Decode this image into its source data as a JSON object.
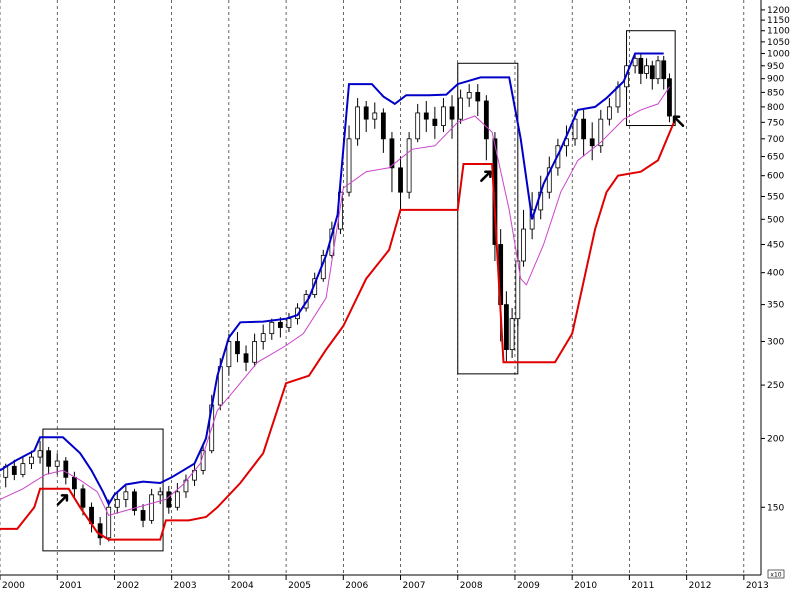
{
  "chart_data": {
    "type": "candlestick",
    "title": "",
    "xlabel": "",
    "ylabel": "",
    "y_scale": "log",
    "ylim": [
      113,
      1230
    ],
    "xlim": [
      2000.0,
      2013.3
    ],
    "y_ticks": [
      1200,
      1150,
      1100,
      1050,
      1000,
      950,
      900,
      850,
      800,
      750,
      700,
      650,
      600,
      550,
      500,
      450,
      400,
      350,
      300,
      250,
      200,
      150
    ],
    "x_ticks": [
      "2000",
      "2001",
      "2002",
      "2003",
      "2004",
      "2005",
      "2006",
      "2007",
      "2008",
      "2009",
      "2010",
      "2011",
      "2012",
      "2013"
    ],
    "scale_tag": "x10",
    "grid": {
      "vertical": true,
      "horizontal": false,
      "style": "dashed"
    },
    "colors": {
      "upper_band": "#0000c8",
      "lower_band": "#e00000",
      "middle_line": "#cc44cc",
      "candles": "#000000",
      "boxes": "#000000",
      "arrows": "#000000"
    },
    "upper_band": [
      [
        2000.0,
        175
      ],
      [
        2000.3,
        183
      ],
      [
        2000.6,
        190
      ],
      [
        2000.7,
        201
      ],
      [
        2001.1,
        201
      ],
      [
        2001.4,
        188
      ],
      [
        2001.6,
        175
      ],
      [
        2001.8,
        160
      ],
      [
        2001.9,
        152
      ],
      [
        2002.0,
        158
      ],
      [
        2002.2,
        165
      ],
      [
        2002.5,
        167
      ],
      [
        2002.8,
        166
      ],
      [
        2003.0,
        170
      ],
      [
        2003.4,
        180
      ],
      [
        2003.6,
        200
      ],
      [
        2003.8,
        260
      ],
      [
        2004.0,
        305
      ],
      [
        2004.2,
        325
      ],
      [
        2004.6,
        326
      ],
      [
        2005.0,
        330
      ],
      [
        2005.2,
        335
      ],
      [
        2005.4,
        360
      ],
      [
        2005.7,
        430
      ],
      [
        2005.9,
        510
      ],
      [
        2006.1,
        880
      ],
      [
        2006.5,
        880
      ],
      [
        2006.7,
        835
      ],
      [
        2006.9,
        810
      ],
      [
        2007.1,
        840
      ],
      [
        2007.5,
        840
      ],
      [
        2007.8,
        842
      ],
      [
        2008.0,
        880
      ],
      [
        2008.4,
        905
      ],
      [
        2008.9,
        905
      ],
      [
        2009.1,
        700
      ],
      [
        2009.3,
        500
      ],
      [
        2009.5,
        580
      ],
      [
        2009.8,
        670
      ],
      [
        2010.1,
        790
      ],
      [
        2010.4,
        800
      ],
      [
        2010.6,
        830
      ],
      [
        2010.9,
        890
      ],
      [
        2011.1,
        1000
      ],
      [
        2011.6,
        1000
      ]
    ],
    "middle_line": [
      [
        2000.0,
        155
      ],
      [
        2000.4,
        162
      ],
      [
        2000.8,
        172
      ],
      [
        2001.1,
        175
      ],
      [
        2001.4,
        168
      ],
      [
        2001.7,
        160
      ],
      [
        2001.9,
        145
      ],
      [
        2002.2,
        148
      ],
      [
        2002.6,
        152
      ],
      [
        2002.9,
        155
      ],
      [
        2003.2,
        165
      ],
      [
        2003.5,
        180
      ],
      [
        2003.8,
        225
      ],
      [
        2004.1,
        245
      ],
      [
        2004.5,
        275
      ],
      [
        2005.0,
        295
      ],
      [
        2005.3,
        310
      ],
      [
        2005.7,
        360
      ],
      [
        2006.0,
        570
      ],
      [
        2006.4,
        610
      ],
      [
        2006.8,
        620
      ],
      [
        2007.2,
        670
      ],
      [
        2007.6,
        680
      ],
      [
        2008.0,
        750
      ],
      [
        2008.3,
        770
      ],
      [
        2008.6,
        720
      ],
      [
        2008.9,
        520
      ],
      [
        2009.1,
        390
      ],
      [
        2009.2,
        380
      ],
      [
        2009.5,
        450
      ],
      [
        2009.8,
        560
      ],
      [
        2010.1,
        640
      ],
      [
        2010.5,
        690
      ],
      [
        2010.9,
        760
      ],
      [
        2011.2,
        790
      ],
      [
        2011.5,
        810
      ],
      [
        2011.7,
        870
      ]
    ],
    "lower_band": [
      [
        2000.0,
        137
      ],
      [
        2000.3,
        137
      ],
      [
        2000.6,
        150
      ],
      [
        2000.7,
        162
      ],
      [
        2001.2,
        162
      ],
      [
        2001.4,
        150
      ],
      [
        2001.7,
        135
      ],
      [
        2001.9,
        131
      ],
      [
        2002.3,
        131
      ],
      [
        2002.8,
        131
      ],
      [
        2002.9,
        142
      ],
      [
        2003.3,
        142
      ],
      [
        2003.6,
        144
      ],
      [
        2003.8,
        150
      ],
      [
        2004.2,
        166
      ],
      [
        2004.6,
        188
      ],
      [
        2005.0,
        252
      ],
      [
        2005.4,
        260
      ],
      [
        2005.7,
        290
      ],
      [
        2006.0,
        320
      ],
      [
        2006.4,
        390
      ],
      [
        2006.8,
        440
      ],
      [
        2007.0,
        520
      ],
      [
        2007.4,
        520
      ],
      [
        2008.0,
        520
      ],
      [
        2008.1,
        630
      ],
      [
        2008.6,
        630
      ],
      [
        2008.8,
        275
      ],
      [
        2009.4,
        275
      ],
      [
        2009.7,
        275
      ],
      [
        2010.0,
        310
      ],
      [
        2010.4,
        480
      ],
      [
        2010.6,
        560
      ],
      [
        2010.8,
        600
      ],
      [
        2011.2,
        610
      ],
      [
        2011.5,
        640
      ],
      [
        2011.8,
        760
      ]
    ],
    "candles": [
      [
        2000.1,
        170,
        178,
        163,
        180
      ],
      [
        2000.25,
        178,
        172,
        168,
        183
      ],
      [
        2000.4,
        172,
        180,
        170,
        186
      ],
      [
        2000.55,
        180,
        185,
        176,
        190
      ],
      [
        2000.7,
        185,
        190,
        180,
        198
      ],
      [
        2000.85,
        190,
        178,
        172,
        193
      ],
      [
        2001.0,
        178,
        182,
        172,
        188
      ],
      [
        2001.15,
        182,
        170,
        165,
        185
      ],
      [
        2001.3,
        170,
        162,
        156,
        174
      ],
      [
        2001.45,
        162,
        150,
        145,
        165
      ],
      [
        2001.6,
        150,
        140,
        135,
        153
      ],
      [
        2001.75,
        140,
        132,
        128,
        144
      ],
      [
        2001.9,
        132,
        150,
        130,
        155
      ],
      [
        2002.05,
        150,
        155,
        146,
        160
      ],
      [
        2002.2,
        155,
        160,
        150,
        164
      ],
      [
        2002.35,
        160,
        148,
        145,
        162
      ],
      [
        2002.5,
        148,
        142,
        138,
        152
      ],
      [
        2002.65,
        142,
        158,
        140,
        162
      ],
      [
        2002.8,
        158,
        160,
        152,
        163
      ],
      [
        2002.95,
        160,
        150,
        146,
        164
      ],
      [
        2003.1,
        150,
        160,
        148,
        166
      ],
      [
        2003.25,
        160,
        168,
        156,
        172
      ],
      [
        2003.4,
        168,
        175,
        164,
        180
      ],
      [
        2003.55,
        175,
        190,
        172,
        196
      ],
      [
        2003.7,
        190,
        230,
        188,
        240
      ],
      [
        2003.85,
        230,
        270,
        225,
        280
      ],
      [
        2004.0,
        270,
        300,
        260,
        310
      ],
      [
        2004.15,
        300,
        285,
        275,
        312
      ],
      [
        2004.3,
        285,
        275,
        265,
        295
      ],
      [
        2004.45,
        275,
        300,
        270,
        310
      ],
      [
        2004.6,
        300,
        310,
        290,
        322
      ],
      [
        2004.75,
        310,
        325,
        302,
        330
      ],
      [
        2004.9,
        325,
        318,
        305,
        332
      ],
      [
        2005.05,
        318,
        330,
        312,
        338
      ],
      [
        2005.2,
        330,
        345,
        322,
        352
      ],
      [
        2005.35,
        345,
        365,
        340,
        372
      ],
      [
        2005.5,
        365,
        390,
        360,
        400
      ],
      [
        2005.65,
        390,
        430,
        385,
        440
      ],
      [
        2005.8,
        430,
        480,
        425,
        495
      ],
      [
        2005.95,
        480,
        560,
        470,
        580
      ],
      [
        2006.1,
        560,
        700,
        550,
        740
      ],
      [
        2006.25,
        700,
        800,
        680,
        830
      ],
      [
        2006.4,
        800,
        760,
        720,
        820
      ],
      [
        2006.55,
        760,
        780,
        730,
        815
      ],
      [
        2006.7,
        780,
        700,
        660,
        795
      ],
      [
        2006.85,
        700,
        620,
        560,
        720
      ],
      [
        2007.0,
        620,
        560,
        520,
        650
      ],
      [
        2007.15,
        560,
        700,
        545,
        720
      ],
      [
        2007.3,
        700,
        780,
        690,
        810
      ],
      [
        2007.45,
        780,
        760,
        720,
        820
      ],
      [
        2007.6,
        760,
        740,
        700,
        800
      ],
      [
        2007.75,
        740,
        800,
        720,
        830
      ],
      [
        2007.9,
        800,
        760,
        700,
        840
      ],
      [
        2008.05,
        760,
        830,
        745,
        860
      ],
      [
        2008.2,
        830,
        850,
        800,
        880
      ],
      [
        2008.35,
        850,
        820,
        770,
        880
      ],
      [
        2008.5,
        820,
        700,
        640,
        840
      ],
      [
        2008.65,
        700,
        450,
        420,
        720
      ],
      [
        2008.75,
        450,
        350,
        300,
        480
      ],
      [
        2008.85,
        350,
        290,
        275,
        370
      ],
      [
        2008.95,
        290,
        330,
        280,
        345
      ],
      [
        2009.05,
        330,
        420,
        320,
        440
      ],
      [
        2009.15,
        420,
        480,
        410,
        520
      ],
      [
        2009.3,
        480,
        520,
        460,
        560
      ],
      [
        2009.45,
        520,
        560,
        500,
        600
      ],
      [
        2009.6,
        560,
        620,
        545,
        650
      ],
      [
        2009.75,
        620,
        680,
        600,
        700
      ],
      [
        2009.9,
        680,
        700,
        650,
        740
      ],
      [
        2010.05,
        700,
        760,
        680,
        790
      ],
      [
        2010.2,
        760,
        700,
        650,
        790
      ],
      [
        2010.35,
        700,
        680,
        640,
        750
      ],
      [
        2010.5,
        680,
        760,
        660,
        790
      ],
      [
        2010.65,
        760,
        800,
        740,
        830
      ],
      [
        2010.8,
        800,
        870,
        780,
        890
      ],
      [
        2010.95,
        870,
        950,
        850,
        980
      ],
      [
        2011.1,
        950,
        980,
        920,
        1000
      ],
      [
        2011.2,
        980,
        920,
        880,
        1000
      ],
      [
        2011.3,
        920,
        950,
        900,
        980
      ],
      [
        2011.4,
        950,
        900,
        860,
        970
      ],
      [
        2011.5,
        900,
        970,
        880,
        990
      ],
      [
        2011.6,
        970,
        900,
        860,
        990
      ],
      [
        2011.7,
        900,
        770,
        750,
        920
      ]
    ],
    "boxes": [
      {
        "x0": 2000.75,
        "x1": 2002.85,
        "y_top": 208,
        "y_bottom": 125
      },
      {
        "x0": 2008.0,
        "x1": 2009.05,
        "y_top": 960,
        "y_bottom": 262
      },
      {
        "x0": 2010.95,
        "x1": 2011.8,
        "y_top": 1100,
        "y_bottom": 740
      }
    ],
    "arrows": [
      {
        "x": 2001.1,
        "y": 155,
        "direction": "up-right"
      },
      {
        "x": 2008.5,
        "y": 600,
        "direction": "up-right"
      },
      {
        "x": 2011.85,
        "y": 755,
        "direction": "up-left"
      }
    ]
  }
}
